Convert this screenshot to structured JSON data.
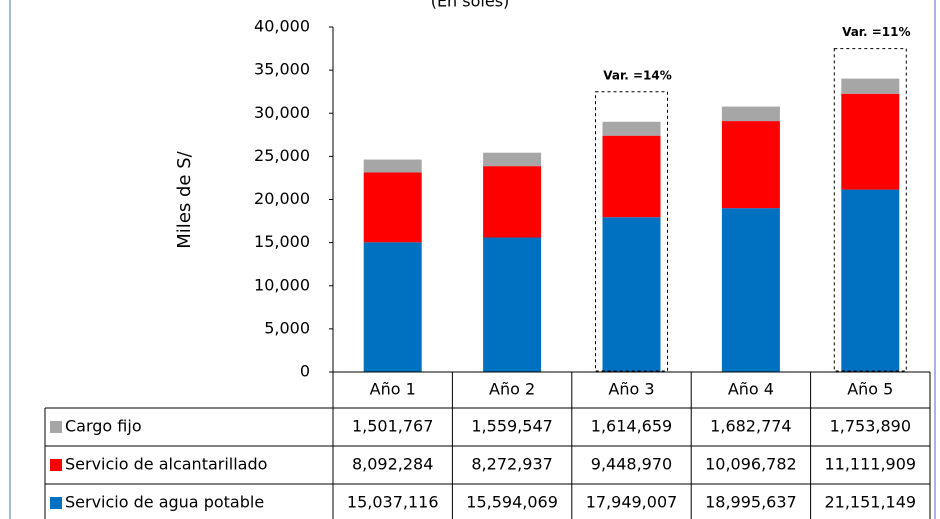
{
  "chart_data": {
    "type": "stacked_bar",
    "subtitle": "(En soles)",
    "y_label": "Miles de S/",
    "categories": [
      "Año 1",
      "Año 2",
      "Año 3",
      "Año 4",
      "Año 5"
    ],
    "series": [
      {
        "name": "Cargo fijo",
        "color": "#a6a6a6",
        "values": [
          1501.767,
          1559.547,
          1614.659,
          1682.774,
          1753.89
        ],
        "value_labels": [
          "1,501,767",
          "1,559,547",
          "1,614,659",
          "1,682,774",
          "1,753,890"
        ]
      },
      {
        "name": "Servicio de alcantarillado",
        "color": "#ff0000",
        "values": [
          8092.284,
          8272.937,
          9448.97,
          10096.782,
          11111.909
        ],
        "value_labels": [
          "8,092,284",
          "8,272,937",
          "9,448,970",
          "10,096,782",
          "11,111,909"
        ]
      },
      {
        "name": "Servicio de agua potable",
        "color": "#0070c0",
        "values": [
          15037.116,
          15594.069,
          17949.007,
          18995.637,
          21151.149
        ],
        "value_labels": [
          "15,037,116",
          "15,594,069",
          "17,949,007",
          "18,995,637",
          "21,151,149"
        ]
      }
    ],
    "ylim": [
      0,
      40000
    ],
    "yticks": [
      0,
      {
        "value": 5000,
        "label": "5,000"
      },
      {
        "value": 10000,
        "label": "10,000"
      },
      {
        "value": 15000,
        "label": "15,000"
      },
      {
        "value": 20000,
        "label": "20,000"
      },
      {
        "value": 25000,
        "label": "25,000"
      },
      {
        "value": 30000,
        "label": "30,000"
      },
      {
        "value": 35000,
        "label": "35,000"
      },
      {
        "value": 40000,
        "label": "40,000"
      }
    ],
    "annotations": [
      {
        "text": "Var. =14%",
        "category": "Año 3"
      },
      {
        "text": "Var. =11%",
        "category": "Año 5"
      }
    ]
  }
}
